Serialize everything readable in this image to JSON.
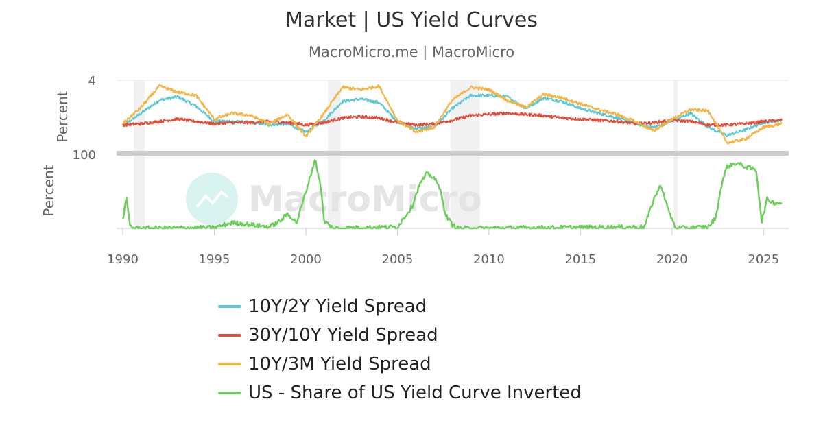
{
  "header": {
    "title": "Market | US Yield Curves",
    "subtitle": "MacroMicro.me | MacroMicro"
  },
  "watermark": {
    "text": "MacroMicro",
    "icon": "chart-logo-icon"
  },
  "chart_data": {
    "type": "line",
    "x_range": [
      1990,
      2026
    ],
    "x_ticks": [
      "1990",
      "1995",
      "2000",
      "2005",
      "2010",
      "2015",
      "2020",
      "2025"
    ],
    "recessions": [
      [
        1990.6,
        1991.2
      ],
      [
        2001.2,
        2001.9
      ],
      [
        2007.9,
        2009.5
      ],
      [
        2020.1,
        2020.3
      ]
    ],
    "panels": [
      {
        "id": "spreads",
        "ylabel": "Percent",
        "y_tick": "4",
        "series": [
          {
            "name": "10Y/2Y Yield Spread",
            "color": "#5bc8d2",
            "points": [
              [
                1990,
                0.1
              ],
              [
                1991,
                1.2
              ],
              [
                1992,
                2.3
              ],
              [
                1993,
                2.6
              ],
              [
                1994,
                1.8
              ],
              [
                1995,
                0.5
              ],
              [
                1996,
                0.5
              ],
              [
                1997,
                0.4
              ],
              [
                1998,
                0.2
              ],
              [
                1999,
                0.3
              ],
              [
                2000,
                -0.4
              ],
              [
                2001,
                0.6
              ],
              [
                2002,
                2.2
              ],
              [
                2003,
                2.4
              ],
              [
                2004,
                2.1
              ],
              [
                2005,
                0.5
              ],
              [
                2006,
                -0.1
              ],
              [
                2007,
                0.0
              ],
              [
                2008,
                1.6
              ],
              [
                2009,
                2.7
              ],
              [
                2010,
                2.7
              ],
              [
                2011,
                2.6
              ],
              [
                2012,
                1.6
              ],
              [
                2013,
                2.5
              ],
              [
                2014,
                2.2
              ],
              [
                2015,
                1.6
              ],
              [
                2016,
                1.2
              ],
              [
                2017,
                0.8
              ],
              [
                2018,
                0.3
              ],
              [
                2019,
                0.0
              ],
              [
                2020,
                0.5
              ],
              [
                2021,
                1.2
              ],
              [
                2022,
                0.0
              ],
              [
                2023,
                -0.7
              ],
              [
                2024,
                -0.2
              ],
              [
                2025,
                0.4
              ],
              [
                2026,
                0.6
              ]
            ]
          },
          {
            "name": "30Y/10Y Yield Spread",
            "color": "#e04f3c",
            "points": [
              [
                1990,
                0.2
              ],
              [
                1991,
                0.3
              ],
              [
                1992,
                0.5
              ],
              [
                1993,
                0.7
              ],
              [
                1994,
                0.5
              ],
              [
                1995,
                0.3
              ],
              [
                1996,
                0.4
              ],
              [
                1997,
                0.4
              ],
              [
                1998,
                0.5
              ],
              [
                1999,
                0.4
              ],
              [
                2000,
                0.2
              ],
              [
                2001,
                0.4
              ],
              [
                2002,
                0.8
              ],
              [
                2003,
                0.9
              ],
              [
                2004,
                0.8
              ],
              [
                2005,
                0.4
              ],
              [
                2006,
                0.2
              ],
              [
                2007,
                0.3
              ],
              [
                2008,
                0.6
              ],
              [
                2009,
                1.0
              ],
              [
                2010,
                1.1
              ],
              [
                2011,
                1.2
              ],
              [
                2012,
                1.1
              ],
              [
                2013,
                1.0
              ],
              [
                2014,
                0.8
              ],
              [
                2015,
                0.7
              ],
              [
                2016,
                0.6
              ],
              [
                2017,
                0.5
              ],
              [
                2018,
                0.3
              ],
              [
                2019,
                0.4
              ],
              [
                2020,
                0.6
              ],
              [
                2021,
                0.5
              ],
              [
                2022,
                0.2
              ],
              [
                2023,
                0.2
              ],
              [
                2024,
                0.3
              ],
              [
                2025,
                0.5
              ],
              [
                2026,
                0.6
              ]
            ]
          },
          {
            "name": "10Y/3M Yield Spread",
            "color": "#f5b342",
            "points": [
              [
                1990,
                0.3
              ],
              [
                1991,
                1.7
              ],
              [
                1992,
                3.5
              ],
              [
                1993,
                3.0
              ],
              [
                1994,
                2.7
              ],
              [
                1995,
                0.7
              ],
              [
                1996,
                1.2
              ],
              [
                1997,
                1.0
              ],
              [
                1998,
                0.3
              ],
              [
                1999,
                1.1
              ],
              [
                2000,
                -0.8
              ],
              [
                2001,
                1.2
              ],
              [
                2002,
                3.4
              ],
              [
                2003,
                3.2
              ],
              [
                2004,
                3.5
              ],
              [
                2005,
                0.6
              ],
              [
                2006,
                -0.4
              ],
              [
                2007,
                0.0
              ],
              [
                2008,
                2.3
              ],
              [
                2009,
                3.4
              ],
              [
                2010,
                3.2
              ],
              [
                2011,
                2.3
              ],
              [
                2012,
                1.7
              ],
              [
                2013,
                2.8
              ],
              [
                2014,
                2.5
              ],
              [
                2015,
                2.0
              ],
              [
                2016,
                1.5
              ],
              [
                2017,
                1.1
              ],
              [
                2018,
                0.5
              ],
              [
                2019,
                -0.3
              ],
              [
                2020,
                0.7
              ],
              [
                2021,
                1.5
              ],
              [
                2022,
                1.4
              ],
              [
                2023,
                -1.3
              ],
              [
                2024,
                -1.0
              ],
              [
                2025,
                0.0
              ],
              [
                2026,
                0.3
              ]
            ]
          }
        ]
      },
      {
        "id": "inverted",
        "ylabel": "Percent",
        "y_tick": "100",
        "series": [
          {
            "name": "US - Share of US Yield Curve Inverted",
            "color": "#6ccf5c",
            "points": [
              [
                1990,
                12
              ],
              [
                1990.2,
                40
              ],
              [
                1990.4,
                5
              ],
              [
                1990.6,
                0
              ],
              [
                1995,
                1
              ],
              [
                1996,
                8
              ],
              [
                1998,
                2
              ],
              [
                1998.6,
                10
              ],
              [
                1999,
                20
              ],
              [
                1999.5,
                8
              ],
              [
                2000,
                50
              ],
              [
                2000.5,
                95
              ],
              [
                2000.8,
                60
              ],
              [
                2001,
                10
              ],
              [
                2001.5,
                0
              ],
              [
                2005,
                2
              ],
              [
                2005.8,
                30
              ],
              [
                2006.2,
                60
              ],
              [
                2006.6,
                75
              ],
              [
                2007,
                70
              ],
              [
                2007.4,
                50
              ],
              [
                2007.6,
                20
              ],
              [
                2008,
                5
              ],
              [
                2008.3,
                0
              ],
              [
                2018.5,
                2
              ],
              [
                2019,
                40
              ],
              [
                2019.4,
                60
              ],
              [
                2019.8,
                25
              ],
              [
                2020.2,
                0
              ],
              [
                2022,
                2
              ],
              [
                2022.4,
                15
              ],
              [
                2022.7,
                60
              ],
              [
                2023,
                85
              ],
              [
                2023.5,
                90
              ],
              [
                2024,
                85
              ],
              [
                2024.6,
                80
              ],
              [
                2024.9,
                10
              ],
              [
                2025.2,
                40
              ],
              [
                2025.6,
                35
              ],
              [
                2026,
                35
              ]
            ]
          }
        ]
      }
    ],
    "legend_position": "bottom",
    "grid": true
  }
}
